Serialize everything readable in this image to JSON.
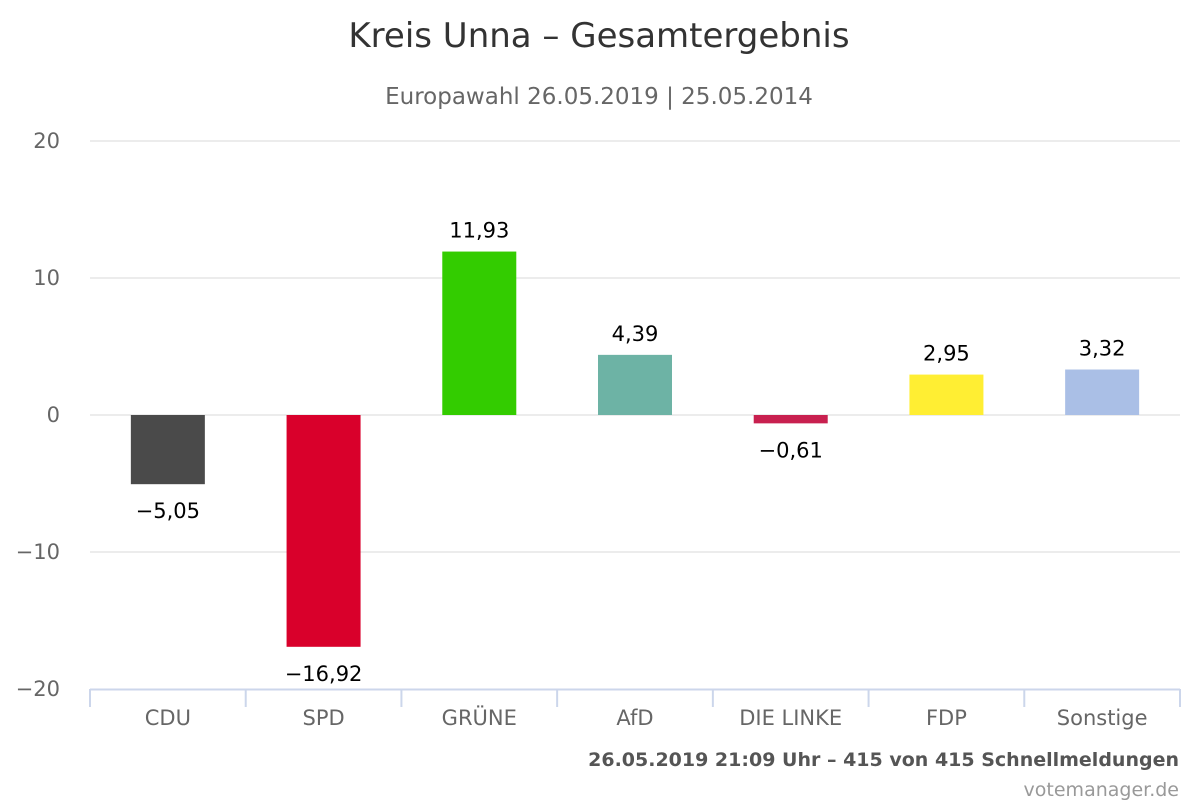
{
  "chart_data": {
    "type": "bar",
    "title": "Kreis Unna – Gesamtergebnis",
    "subtitle": "Europawahl 26.05.2019 | 25.05.2014",
    "categories": [
      "CDU",
      "SPD",
      "GRÜNE",
      "AfD",
      "DIE LINKE",
      "FDP",
      "Sonstige"
    ],
    "values": [
      -5.05,
      -16.92,
      11.93,
      4.39,
      -0.61,
      2.95,
      3.32
    ],
    "data_labels": [
      "−5,05",
      "−16,92",
      "11,93",
      "4,39",
      "−0,61",
      "2,95",
      "3,32"
    ],
    "colors": [
      "#4a4a4a",
      "#d9002b",
      "#33cc00",
      "#6db3a5",
      "#c8204f",
      "#ffee33",
      "#aabfe6"
    ],
    "ylim": [
      -20,
      20
    ],
    "yticks": [
      20,
      10,
      0,
      -10,
      -20
    ],
    "ytick_labels": [
      "20",
      "10",
      "0",
      "−10",
      "−20"
    ],
    "grid": true,
    "legend": "none"
  },
  "footer": {
    "timestamp": "26.05.2019 21:09 Uhr – 415 von 415 Schnellmeldungen",
    "credit": "votemanager.de"
  }
}
